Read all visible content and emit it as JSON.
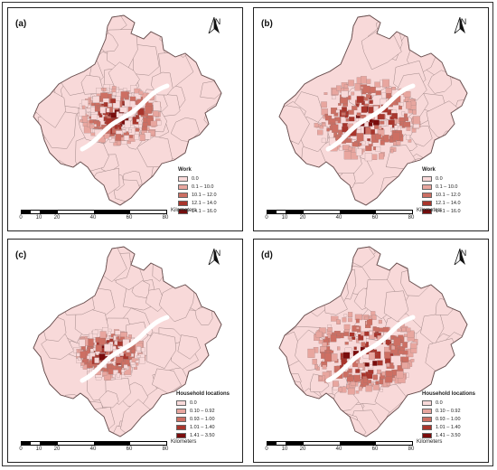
{
  "north_label": "N",
  "scale": {
    "ticks": [
      "0",
      "10",
      "20",
      "40",
      "60",
      "80"
    ],
    "unit": "Kilometers"
  },
  "colors": {
    "c0": "#f8d9d9",
    "c1": "#e8a69f",
    "c2": "#cd6f63",
    "c3": "#a9352c",
    "c4": "#7a0c0c",
    "river": "#ffffff",
    "boundary": "#8a7474"
  },
  "panels": [
    {
      "label": "(a)",
      "legend_title": "Work",
      "legend": [
        "0.0",
        "0.1 – 10.0",
        "10.1 – 12.0",
        "12.1 – 14.0",
        "14.1 – 16.0"
      ]
    },
    {
      "label": "(b)",
      "legend_title": "Work",
      "legend": [
        "0.0",
        "0.1 – 10.0",
        "10.1 – 12.0",
        "12.1 – 14.0",
        "14.1 – 16.0"
      ]
    },
    {
      "label": "(c)",
      "legend_title": "Household locations",
      "legend": [
        "0.0",
        "0.10 – 0.92",
        "0.93 – 1.00",
        "1.01 – 1.40",
        "1.41 – 3.50"
      ]
    },
    {
      "label": "(d)",
      "legend_title": "Household locations",
      "legend": [
        "0.0",
        "0.10 – 0.92",
        "0.93 – 1.00",
        "1.01 – 1.40",
        "1.41 – 3.50"
      ]
    }
  ]
}
